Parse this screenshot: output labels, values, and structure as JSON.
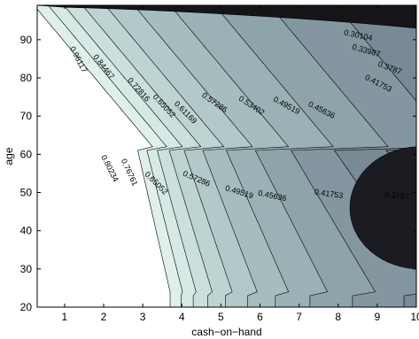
{
  "chart_data": {
    "type": "contour",
    "xlabel": "cash−on−hand",
    "ylabel": "age",
    "xlim": [
      0.3,
      10
    ],
    "ylim": [
      20,
      99
    ],
    "xticks": [
      "1",
      "2",
      "3",
      "4",
      "5",
      "6",
      "7",
      "8",
      "9",
      "10"
    ],
    "yticks": [
      "20",
      "30",
      "40",
      "50",
      "60",
      "70",
      "80",
      "90"
    ],
    "colormap": [
      "#ffffff",
      "#d4e8e4",
      "#9fb6b9",
      "#6f7e8c",
      "#4a5063",
      "#2c2f3c",
      "#111216"
    ],
    "contour_levels": [
      0.96117,
      0.84467,
      0.80234,
      0.76761,
      0.72816,
      0.65052,
      0.61169,
      0.57286,
      0.53402,
      0.49519,
      0.45636,
      0.41753,
      0.3787,
      0.33987,
      0.30104
    ],
    "contour_labels": [
      {
        "text": "0.96117",
        "x": 1.3,
        "y": 84.5,
        "angle": 62
      },
      {
        "text": "0.84467",
        "x": 1.95,
        "y": 82.5,
        "angle": 52
      },
      {
        "text": "0.72816",
        "x": 2.85,
        "y": 76.5,
        "angle": 48
      },
      {
        "text": "0.65052",
        "x": 3.5,
        "y": 72.2,
        "angle": 47
      },
      {
        "text": "0.61169",
        "x": 4.05,
        "y": 70.5,
        "angle": 45
      },
      {
        "text": "0.57286",
        "x": 4.8,
        "y": 73.0,
        "angle": 35
      },
      {
        "text": "0.53402",
        "x": 5.75,
        "y": 72.2,
        "angle": 33
      },
      {
        "text": "0.49519",
        "x": 6.65,
        "y": 72.2,
        "angle": 28
      },
      {
        "text": "0.45636",
        "x": 7.55,
        "y": 71.0,
        "angle": 27
      },
      {
        "text": "0.41753",
        "x": 9.0,
        "y": 78.0,
        "angle": 27
      },
      {
        "text": "0.3787",
        "x": 9.3,
        "y": 82.0,
        "angle": 20
      },
      {
        "text": "0.33987",
        "x": 8.7,
        "y": 86.5,
        "angle": 16
      },
      {
        "text": "0.30104",
        "x": 8.5,
        "y": 90.5,
        "angle": 12
      },
      {
        "text": "0.80234",
        "x": 2.1,
        "y": 56.0,
        "angle": 63
      },
      {
        "text": "0.76761",
        "x": 2.6,
        "y": 55.0,
        "angle": 65
      },
      {
        "text": "0.65052",
        "x": 3.3,
        "y": 52.0,
        "angle": 45
      },
      {
        "text": "0.57286",
        "x": 4.35,
        "y": 53.0,
        "angle": 23
      },
      {
        "text": "0.49519",
        "x": 5.45,
        "y": 49.5,
        "angle": 17
      },
      {
        "text": "0.45636",
        "x": 6.3,
        "y": 48.5,
        "angle": 12
      },
      {
        "text": "0.41753",
        "x": 7.75,
        "y": 49.0,
        "angle": 8
      },
      {
        "text": "0.3787",
        "x": 9.5,
        "y": 48.5,
        "angle": 4
      }
    ],
    "grid": false
  }
}
